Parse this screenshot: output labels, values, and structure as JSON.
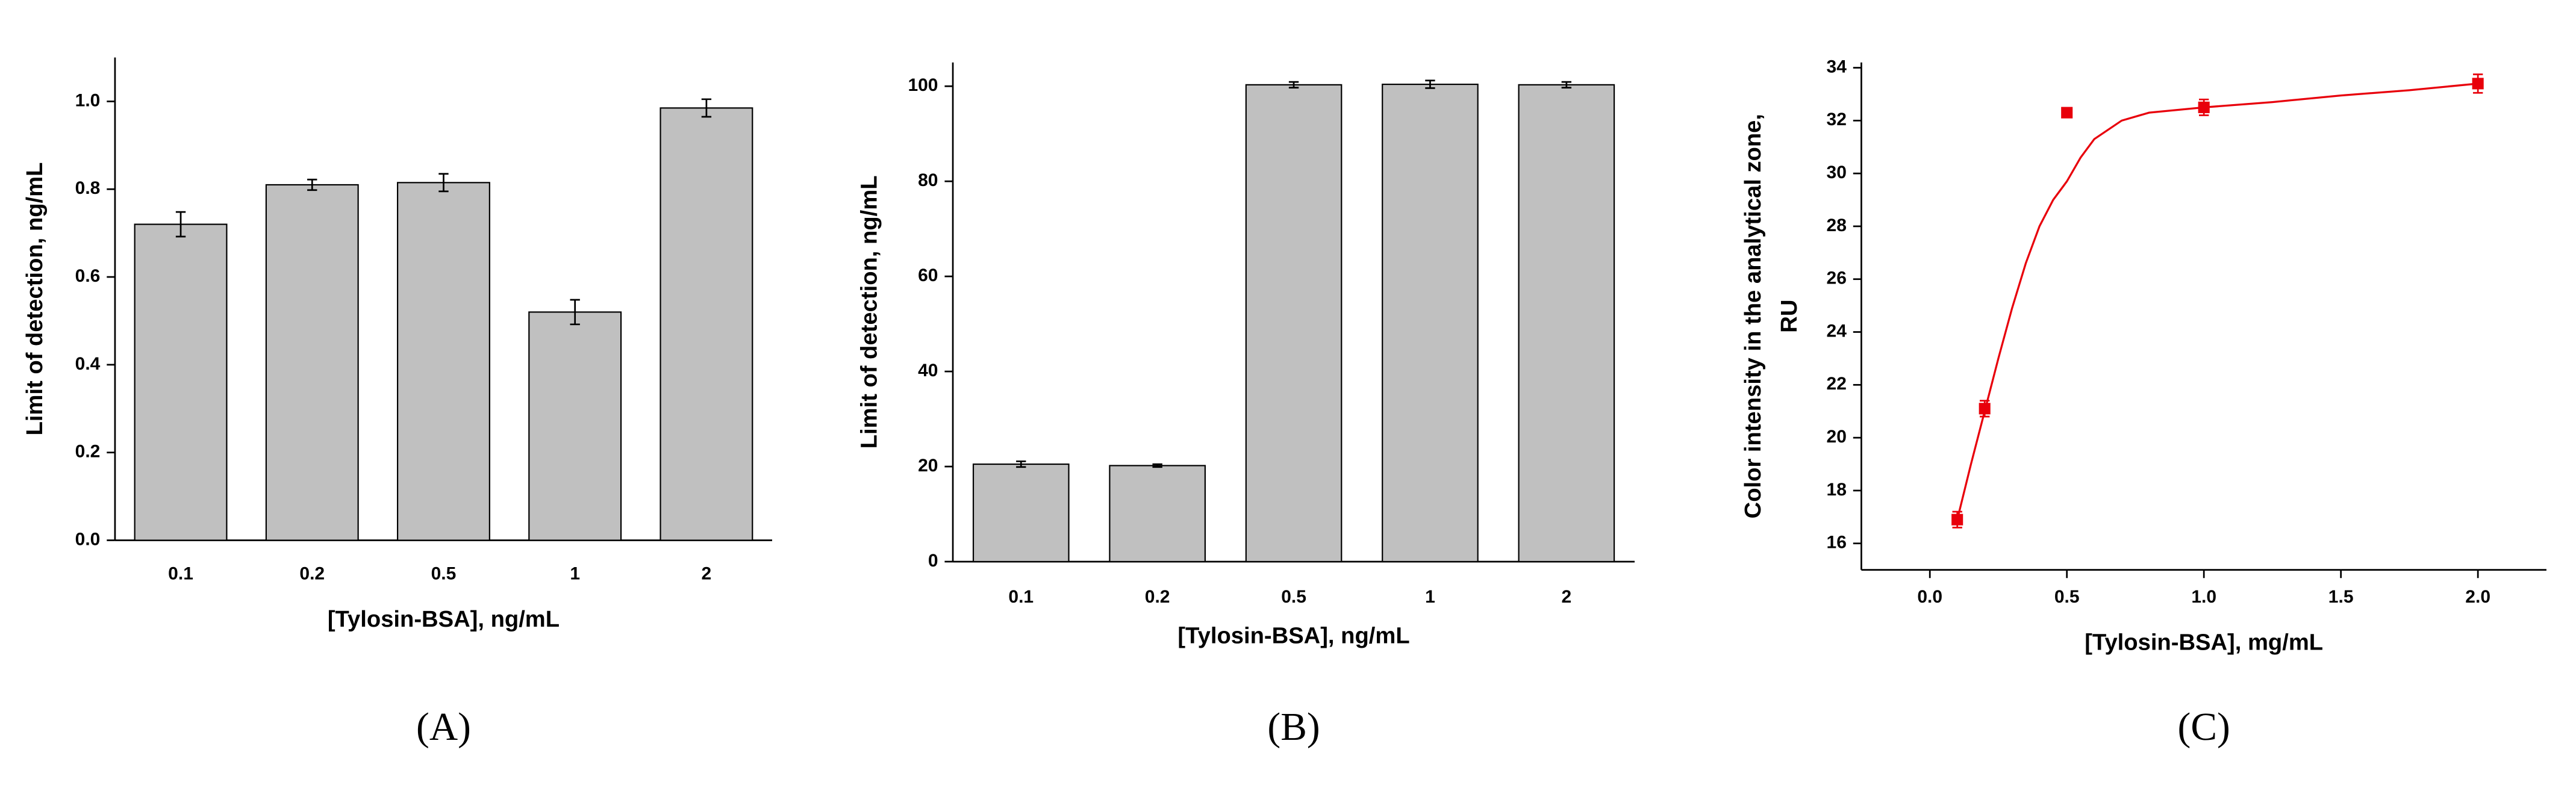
{
  "chart_data": [
    {
      "type": "bar",
      "panel": "(A)",
      "xlabel": "[Tylosin-BSA], ng/mL",
      "ylabel": [
        "Limit of detection, ng/mL"
      ],
      "categories": [
        "0.1",
        "0.2",
        "0.5",
        "1",
        "2"
      ],
      "values": [
        0.72,
        0.81,
        0.815,
        0.52,
        0.985
      ],
      "errors": [
        0.028,
        0.012,
        0.02,
        0.028,
        0.02
      ],
      "color": "#c0c0c0",
      "ylim": [
        0,
        1.1
      ],
      "yticks": [
        {
          "value": 0,
          "label": "0.0"
        },
        0.2,
        0.4,
        0.6,
        0.8,
        {
          "value": 1,
          "label": "1.0"
        }
      ]
    },
    {
      "type": "bar",
      "panel": "(B)",
      "xlabel": "[Tylosin-BSA], ng/mL",
      "ylabel": [
        "Limit of detection, ng/mL"
      ],
      "categories": [
        "0.1",
        "0.2",
        "0.5",
        "1",
        "2"
      ],
      "values": [
        20.5,
        20.2,
        100.3,
        100.4,
        100.3
      ],
      "errors": [
        0.6,
        0.3,
        0.6,
        0.8,
        0.6
      ],
      "color": "#c0c0c0",
      "ylim": [
        0,
        105
      ],
      "yticks": [
        0,
        20,
        40,
        60,
        80,
        100
      ]
    },
    {
      "type": "scatter",
      "panel": "(C)",
      "xlabel": "[Tylosin-BSA], mg/mL",
      "ylabel": [
        "Color intensity in the analytical zone,",
        "RU"
      ],
      "x": [
        0.1,
        0.2,
        0.5,
        1.0,
        2.0
      ],
      "values": [
        16.9,
        21.1,
        32.3,
        32.5,
        33.4
      ],
      "errors": [
        0.3,
        0.3,
        0.15,
        0.3,
        0.35
      ],
      "color": "#e8000b",
      "fit": {
        "x": [
          0.1,
          0.15,
          0.2,
          0.25,
          0.3,
          0.35,
          0.4,
          0.45,
          0.5,
          0.55,
          0.6,
          0.7,
          0.8,
          0.9,
          1.0,
          1.25,
          1.5,
          1.75,
          2.0
        ],
        "y": [
          16.9,
          19.0,
          21.0,
          23.0,
          24.9,
          26.6,
          28.0,
          29.0,
          29.7,
          30.6,
          31.3,
          32.0,
          32.3,
          32.4,
          32.5,
          32.7,
          32.95,
          33.15,
          33.4
        ]
      },
      "xlim": [
        -0.25,
        2.25
      ],
      "ylim": [
        15,
        34.2
      ],
      "xticks": [
        {
          "value": 0,
          "label": "0.0"
        },
        0.5,
        {
          "value": 1,
          "label": "1.0"
        },
        1.5,
        {
          "value": 2,
          "label": "2.0"
        }
      ],
      "yticks": [
        16,
        18,
        20,
        22,
        24,
        26,
        28,
        30,
        32,
        34
      ]
    }
  ]
}
